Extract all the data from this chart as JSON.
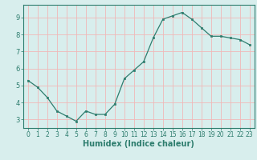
{
  "x": [
    0,
    1,
    2,
    3,
    4,
    5,
    6,
    7,
    8,
    9,
    10,
    11,
    12,
    13,
    14,
    15,
    16,
    17,
    18,
    19,
    20,
    21,
    22,
    23
  ],
  "y": [
    5.3,
    4.9,
    4.3,
    3.5,
    3.2,
    2.9,
    3.5,
    3.3,
    3.3,
    3.9,
    5.4,
    5.9,
    6.4,
    7.8,
    8.9,
    9.1,
    9.3,
    8.9,
    8.4,
    7.9,
    7.9,
    7.8,
    7.7,
    7.4
  ],
  "xlabel": "Humidex (Indice chaleur)",
  "ylim": [
    2.5,
    9.75
  ],
  "xlim": [
    -0.5,
    23.5
  ],
  "yticks": [
    3,
    4,
    5,
    6,
    7,
    8,
    9
  ],
  "xtick_labels": [
    "0",
    "1",
    "2",
    "3",
    "4",
    "5",
    "6",
    "7",
    "8",
    "9",
    "10",
    "11",
    "12",
    "13",
    "14",
    "15",
    "16",
    "17",
    "18",
    "19",
    "20",
    "21",
    "22",
    "23"
  ],
  "line_color": "#2e7d6e",
  "marker_color": "#2e7d6e",
  "bg_color": "#d8eeed",
  "grid_color_major": "#f0b8b8",
  "grid_color_minor": "#f0b8b8",
  "label_color": "#000000",
  "fig_bg": "#d8eeed",
  "tick_color": "#2e7d6e",
  "xlabel_fontsize": 7,
  "tick_fontsize": 5.5
}
